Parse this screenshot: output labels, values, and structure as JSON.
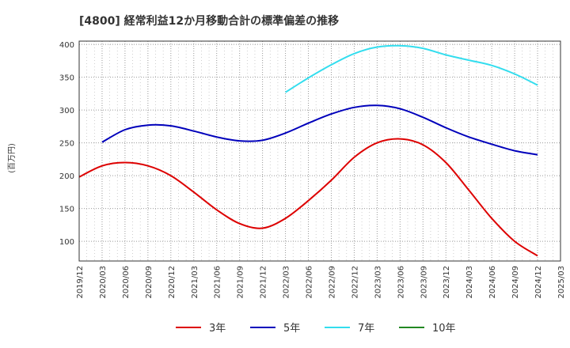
{
  "chart_data": {
    "type": "line",
    "title": "[4800]  経常利益12か月移動合計の標準偏差の推移",
    "ylabel": "(百万円)",
    "xlabel": "",
    "ylim": [
      70,
      405
    ],
    "yticks": [
      100,
      150,
      200,
      250,
      300,
      350,
      400
    ],
    "x_ticks": [
      "2019/12",
      "2020/03",
      "2020/06",
      "2020/09",
      "2020/12",
      "2021/03",
      "2021/06",
      "2021/09",
      "2021/12",
      "2022/03",
      "2022/06",
      "2022/09",
      "2022/12",
      "2023/03",
      "2023/06",
      "2023/09",
      "2023/12",
      "2024/03",
      "2024/06",
      "2024/09",
      "2024/12",
      "2025/03"
    ],
    "grid": true,
    "legend_position": "bottom",
    "series": [
      {
        "name": "3年",
        "color": "#dd0000",
        "x": [
          "2019/12",
          "2020/03",
          "2020/06",
          "2020/09",
          "2020/12",
          "2021/03",
          "2021/06",
          "2021/09",
          "2021/12",
          "2022/03",
          "2022/06",
          "2022/09",
          "2022/12",
          "2023/03",
          "2023/06",
          "2023/09",
          "2023/12",
          "2024/03",
          "2024/06",
          "2024/09",
          "2024/12"
        ],
        "values": [
          198,
          215,
          220,
          215,
          200,
          175,
          148,
          127,
          120,
          135,
          162,
          193,
          228,
          250,
          256,
          247,
          220,
          178,
          135,
          100,
          78
        ]
      },
      {
        "name": "5年",
        "color": "#0000bb",
        "x": [
          "2020/03",
          "2020/06",
          "2020/09",
          "2020/12",
          "2021/03",
          "2021/06",
          "2021/09",
          "2021/12",
          "2022/03",
          "2022/06",
          "2022/09",
          "2022/12",
          "2023/03",
          "2023/06",
          "2023/09",
          "2023/12",
          "2024/03",
          "2024/06",
          "2024/09",
          "2024/12"
        ],
        "values": [
          251,
          270,
          277,
          276,
          268,
          259,
          253,
          254,
          265,
          280,
          294,
          304,
          307,
          302,
          289,
          273,
          259,
          248,
          238,
          232
        ]
      },
      {
        "name": "7年",
        "color": "#33ddee",
        "x": [
          "2022/03",
          "2022/06",
          "2022/09",
          "2022/12",
          "2023/03",
          "2023/06",
          "2023/09",
          "2023/12",
          "2024/03",
          "2024/06",
          "2024/09",
          "2024/12"
        ],
        "values": [
          327,
          349,
          369,
          386,
          396,
          398,
          394,
          384,
          376,
          368,
          355,
          338
        ]
      },
      {
        "name": "10年",
        "color": "#228822",
        "x": [],
        "values": []
      }
    ]
  }
}
